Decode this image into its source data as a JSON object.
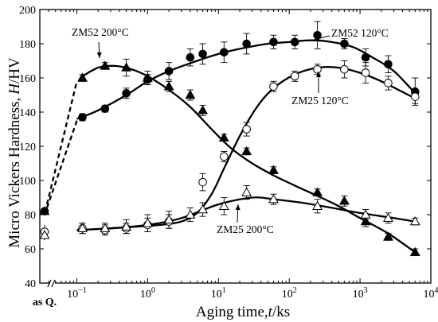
{
  "chart_data": {
    "type": "scatter",
    "xlabel": "Aging time,",
    "xlabel_var": "t",
    "xlabel_unit": "/ks",
    "ylabel": "Micro Vickers Hardness,",
    "ylabel_var": "H",
    "ylabel_unit": "/HV",
    "x_scale": "log",
    "xlim": [
      0.03,
      10000
    ],
    "ylim": [
      40,
      200
    ],
    "x_ticks": [
      {
        "value": 0.1,
        "base": "10",
        "exp": "−1"
      },
      {
        "value": 1,
        "base": "10",
        "exp": "0"
      },
      {
        "value": 10,
        "base": "10",
        "exp": "1"
      },
      {
        "value": 100,
        "base": "10",
        "exp": "2"
      },
      {
        "value": 1000,
        "base": "10",
        "exp": "3"
      },
      {
        "value": 10000,
        "base": "10",
        "exp": "4"
      }
    ],
    "y_ticks": [
      "40",
      "60",
      "80",
      "100",
      "120",
      "140",
      "160",
      "180",
      "200"
    ],
    "as_quenched_label": "as Q.",
    "series": [
      {
        "name": "ZM52 120°C",
        "marker": "filled-circle",
        "as_quenched": 82,
        "x": [
          0.12,
          0.25,
          0.5,
          1,
          2,
          4,
          6,
          12,
          25,
          60,
          120,
          250,
          600,
          1200,
          2500,
          6000
        ],
        "y": [
          137,
          142,
          151,
          159,
          164,
          172,
          174,
          175,
          180,
          181,
          181,
          185,
          180,
          172,
          168,
          152
        ],
        "err": [
          2,
          2,
          3,
          3,
          5,
          5,
          6,
          6,
          6,
          4,
          4,
          8,
          3,
          5,
          5,
          8
        ],
        "curve_x": [
          0.1,
          0.2,
          0.5,
          1,
          2,
          5,
          10,
          20,
          50,
          100,
          200,
          400,
          800,
          1500,
          3000,
          6000
        ],
        "curve_y": [
          136,
          141,
          150,
          158,
          164,
          170,
          174,
          177,
          180,
          181,
          182,
          181,
          178,
          172,
          164,
          151
        ]
      },
      {
        "name": "ZM52 200°C",
        "marker": "filled-triangle",
        "as_quenched": 82,
        "x": [
          0.12,
          0.25,
          0.5,
          1,
          2,
          4,
          6,
          12,
          25,
          60,
          250,
          600,
          1200,
          2500,
          6000
        ],
        "y": [
          160,
          167,
          166,
          160,
          155,
          150,
          141,
          125,
          117,
          106,
          93,
          88,
          76,
          67,
          58
        ],
        "err": [
          2,
          2,
          5,
          4,
          3,
          3,
          3,
          2,
          2,
          2,
          2,
          3,
          3,
          2,
          2
        ],
        "curve_x": [
          0.11,
          0.2,
          0.35,
          0.6,
          1,
          2,
          4,
          8,
          15,
          30,
          60,
          120,
          250,
          500,
          1000,
          2500,
          6000
        ],
        "curve_y": [
          160,
          166,
          167,
          165,
          161,
          153,
          143,
          130,
          119,
          110,
          103,
          97,
          91,
          85,
          78,
          69,
          58
        ]
      },
      {
        "name": "ZM25 120°C",
        "marker": "open-circle",
        "as_quenched": 70,
        "x": [
          0.12,
          0.25,
          0.5,
          1,
          2,
          6,
          12,
          25,
          60,
          120,
          250,
          600,
          1200,
          2500,
          6000
        ],
        "y": [
          72,
          71,
          72,
          74,
          76,
          99,
          114,
          130,
          155,
          161,
          165,
          165,
          163,
          157,
          149
        ],
        "err": [
          3,
          3,
          3,
          4,
          4,
          5,
          3,
          4,
          3,
          3,
          3,
          5,
          6,
          4,
          4
        ],
        "curve_x": [
          0.1,
          0.3,
          0.7,
          1.5,
          3,
          5,
          8,
          12,
          20,
          35,
          60,
          120,
          250,
          500,
          1000,
          2000,
          6000
        ],
        "curve_y": [
          71,
          72,
          73,
          74,
          76,
          81,
          92,
          107,
          126,
          143,
          154,
          162,
          166,
          166,
          163,
          158,
          148
        ]
      },
      {
        "name": "ZM25 200°C",
        "marker": "open-triangle",
        "as_quenched": 68,
        "x": [
          0.12,
          0.25,
          0.5,
          1,
          2,
          4,
          6,
          12,
          25,
          60,
          250,
          1200,
          2500,
          6000
        ],
        "y": [
          72,
          72,
          73,
          75,
          77,
          80,
          83,
          85,
          93,
          89,
          85,
          80,
          78,
          76
        ],
        "err": [
          3,
          3,
          4,
          5,
          5,
          4,
          4,
          5,
          4,
          3,
          4,
          3,
          3,
          2
        ],
        "curve_x": [
          0.1,
          0.3,
          1,
          3,
          10,
          30,
          60,
          150,
          400,
          1000,
          3000,
          6000
        ],
        "curve_y": [
          71,
          72,
          74,
          78,
          86,
          90,
          89,
          87,
          84,
          81,
          78,
          76
        ]
      }
    ],
    "annotations": [
      {
        "text": "ZM52 200°C",
        "series": 1
      },
      {
        "text": "ZM52 120°C",
        "series": 0
      },
      {
        "text": "ZM25 120°C",
        "series": 2
      },
      {
        "text": "ZM25 200°C",
        "series": 3
      }
    ]
  }
}
